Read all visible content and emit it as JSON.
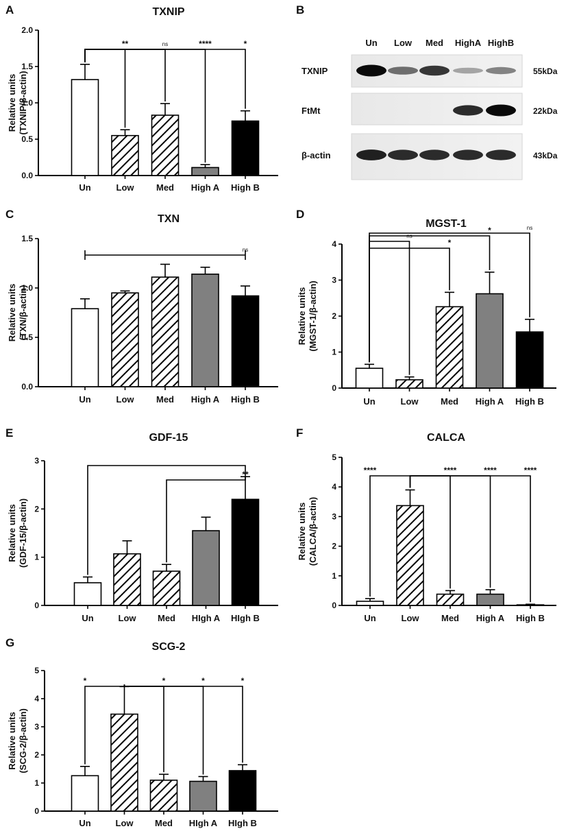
{
  "colors": {
    "Un": "#ffffff",
    "Low": "hatch",
    "Med": "hatch",
    "High A": "#808080",
    "High B": "#000000"
  },
  "western_blot": {
    "letter": "B",
    "lanes": [
      "Un",
      "Low",
      "Med",
      "HighA",
      "HighB"
    ],
    "rows": [
      {
        "protein": "TXNIP",
        "size": "55kDa",
        "intensity": [
          1.0,
          0.55,
          0.8,
          0.3,
          0.45
        ]
      },
      {
        "protein": "FtMt",
        "size": "22kDa",
        "intensity": [
          0,
          0,
          0,
          0.85,
          1.0
        ]
      },
      {
        "protein": "β-actin",
        "size": "43kDa",
        "intensity": [
          0.9,
          0.85,
          0.85,
          0.85,
          0.85
        ]
      }
    ]
  },
  "chart_data": [
    {
      "letter": "A",
      "type": "bar",
      "title": "TXNIP",
      "ylabel_lines": [
        "Relative units",
        "(TXNIP/β-actin)"
      ],
      "categories": [
        "Un",
        "Low",
        "Med",
        "High A",
        "High B"
      ],
      "values": [
        1.32,
        0.55,
        0.83,
        0.11,
        0.75
      ],
      "errors": [
        0.21,
        0.08,
        0.16,
        0.04,
        0.14
      ],
      "ylim": [
        0,
        2.0
      ],
      "yticks": [
        "0.0",
        "0.5",
        "1.0",
        "1.5",
        "2.0"
      ],
      "ytick_values": [
        0,
        0.5,
        1.0,
        1.5,
        2.0
      ],
      "significance": [
        {
          "from": 0,
          "to": 1,
          "label": "**"
        },
        {
          "from": 0,
          "to": 2,
          "label": "ns"
        },
        {
          "from": 0,
          "to": 3,
          "label": "****"
        },
        {
          "from": 0,
          "to": 4,
          "label": "*"
        }
      ]
    },
    {
      "letter": "C",
      "type": "bar",
      "title": "TXN",
      "ylabel_lines": [
        "Relative units",
        "(TXN/β-actin)"
      ],
      "categories": [
        "Un",
        "Low",
        "Med",
        "High A",
        "High B"
      ],
      "values": [
        0.79,
        0.95,
        1.11,
        1.14,
        0.92
      ],
      "errors": [
        0.1,
        0.02,
        0.13,
        0.07,
        0.1
      ],
      "ylim": [
        0,
        1.5
      ],
      "yticks": [
        "0.0",
        "0.5",
        "1.0",
        "1.5"
      ],
      "ytick_values": [
        0,
        0.5,
        1.0,
        1.5
      ],
      "significance": [
        {
          "from": 0,
          "to": 4,
          "label": "ns"
        }
      ]
    },
    {
      "letter": "D",
      "type": "bar",
      "title": "MGST-1",
      "ylabel_lines": [
        "Relative units",
        "(MGST-1/β-actin)"
      ],
      "categories": [
        "Un",
        "Low",
        "Med",
        "High A",
        "High B"
      ],
      "values": [
        0.55,
        0.23,
        2.26,
        2.62,
        1.56
      ],
      "errors": [
        0.11,
        0.08,
        0.4,
        0.6,
        0.35
      ],
      "ylim": [
        0,
        4
      ],
      "yticks": [
        "0",
        "1",
        "2",
        "3",
        "4"
      ],
      "ytick_values": [
        0,
        1,
        2,
        3,
        4
      ],
      "significance": [
        {
          "from": 0,
          "to": 1,
          "label": "ns"
        },
        {
          "from": 0,
          "to": 2,
          "label": "*"
        },
        {
          "from": 0,
          "to": 3,
          "label": "*"
        },
        {
          "from": 0,
          "to": 4,
          "label": "ns"
        }
      ]
    },
    {
      "letter": "E",
      "type": "bar",
      "title": "GDF-15",
      "ylabel_lines": [
        "Relative units",
        "(GDF-15/β-actin)"
      ],
      "categories": [
        "Un",
        "Low",
        "Med",
        "HIgh A",
        "HIgh B"
      ],
      "values": [
        0.47,
        1.07,
        0.71,
        1.55,
        2.2
      ],
      "errors": [
        0.12,
        0.27,
        0.14,
        0.28,
        0.47
      ],
      "ylim": [
        0,
        3
      ],
      "yticks": [
        "0",
        "1",
        "2",
        "3"
      ],
      "ytick_values": [
        0,
        1,
        2,
        3
      ],
      "significance": [
        {
          "from": 0,
          "to": 4,
          "label": ""
        },
        {
          "from": 2,
          "to": 4,
          "label": "**"
        }
      ]
    },
    {
      "letter": "F",
      "type": "bar",
      "title": "CALCA",
      "ylabel_lines": [
        "Relative units",
        "(CALCA/β-actin)"
      ],
      "categories": [
        "Un",
        "Low",
        "Med",
        "High A",
        "High B"
      ],
      "values": [
        0.14,
        3.37,
        0.38,
        0.38,
        0.02
      ],
      "errors": [
        0.09,
        0.53,
        0.12,
        0.15,
        0.02
      ],
      "ylim": [
        0,
        5
      ],
      "yticks": [
        "0",
        "1",
        "2",
        "3",
        "4",
        "5"
      ],
      "ytick_values": [
        0,
        1,
        2,
        3,
        4,
        5
      ],
      "significance": [
        {
          "from": 1,
          "to": 0,
          "label": "****"
        },
        {
          "from": 1,
          "to": 2,
          "label": "****"
        },
        {
          "from": 1,
          "to": 3,
          "label": "****"
        },
        {
          "from": 1,
          "to": 4,
          "label": "****"
        }
      ]
    },
    {
      "letter": "G",
      "type": "bar",
      "title": "SCG-2",
      "ylabel_lines": [
        "Relative units",
        "(SCG-2/β-actin)"
      ],
      "categories": [
        "Un",
        "Low",
        "Med",
        "HIgh A",
        "HIgh B"
      ],
      "values": [
        1.26,
        3.45,
        1.1,
        1.06,
        1.44
      ],
      "errors": [
        0.33,
        0.98,
        0.21,
        0.17,
        0.21
      ],
      "ylim": [
        0,
        5
      ],
      "yticks": [
        "0",
        "1",
        "2",
        "3",
        "4",
        "5"
      ],
      "ytick_values": [
        0,
        1,
        2,
        3,
        4,
        5
      ],
      "significance": [
        {
          "from": 1,
          "to": 0,
          "label": "*"
        },
        {
          "from": 1,
          "to": 2,
          "label": "*"
        },
        {
          "from": 1,
          "to": 3,
          "label": "*"
        },
        {
          "from": 1,
          "to": 4,
          "label": "*"
        }
      ]
    }
  ]
}
